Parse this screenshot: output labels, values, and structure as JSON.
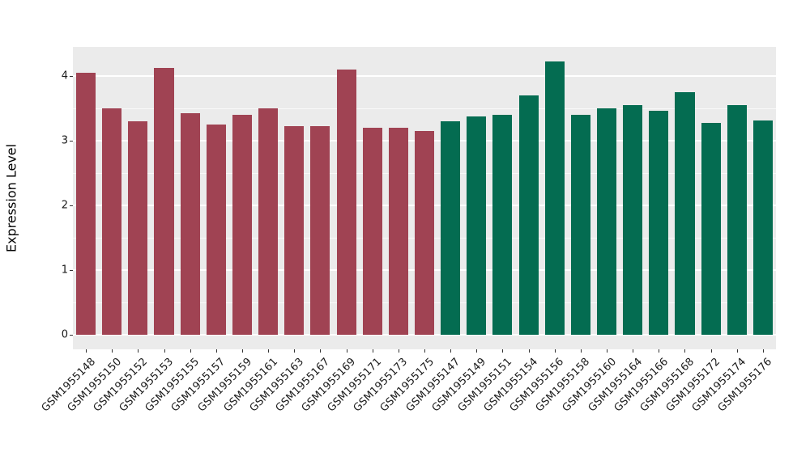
{
  "chart_data": {
    "type": "bar",
    "title": "",
    "xlabel": "",
    "ylabel": "Expression Level",
    "ylim": [
      0,
      4.45
    ],
    "yticks": [
      0,
      1,
      2,
      3,
      4
    ],
    "grid": true,
    "legend": "none",
    "panel_bg": "#EBEBEB",
    "grid_color": "#FFFFFF",
    "group_colors": {
      "A": "#A04353",
      "B": "#046C51"
    },
    "bars": [
      {
        "label": "GSM1955148",
        "value": 4.05,
        "group": "A"
      },
      {
        "label": "GSM1955150",
        "value": 3.5,
        "group": "A"
      },
      {
        "label": "GSM1955152",
        "value": 3.3,
        "group": "A"
      },
      {
        "label": "GSM1955153",
        "value": 4.12,
        "group": "A"
      },
      {
        "label": "GSM1955155",
        "value": 3.42,
        "group": "A"
      },
      {
        "label": "GSM1955157",
        "value": 3.25,
        "group": "A"
      },
      {
        "label": "GSM1955159",
        "value": 3.4,
        "group": "A"
      },
      {
        "label": "GSM1955161",
        "value": 3.5,
        "group": "A"
      },
      {
        "label": "GSM1955163",
        "value": 3.23,
        "group": "A"
      },
      {
        "label": "GSM1955167",
        "value": 3.23,
        "group": "A"
      },
      {
        "label": "GSM1955169",
        "value": 4.1,
        "group": "A"
      },
      {
        "label": "GSM1955171",
        "value": 3.2,
        "group": "A"
      },
      {
        "label": "GSM1955173",
        "value": 3.2,
        "group": "A"
      },
      {
        "label": "GSM1955175",
        "value": 3.15,
        "group": "A"
      },
      {
        "label": "GSM1955147",
        "value": 3.3,
        "group": "B"
      },
      {
        "label": "GSM1955149",
        "value": 3.37,
        "group": "B"
      },
      {
        "label": "GSM1955151",
        "value": 3.4,
        "group": "B"
      },
      {
        "label": "GSM1955154",
        "value": 3.7,
        "group": "B"
      },
      {
        "label": "GSM1955156",
        "value": 4.22,
        "group": "B"
      },
      {
        "label": "GSM1955158",
        "value": 3.4,
        "group": "B"
      },
      {
        "label": "GSM1955160",
        "value": 3.5,
        "group": "B"
      },
      {
        "label": "GSM1955164",
        "value": 3.55,
        "group": "B"
      },
      {
        "label": "GSM1955166",
        "value": 3.46,
        "group": "B"
      },
      {
        "label": "GSM1955168",
        "value": 3.75,
        "group": "B"
      },
      {
        "label": "GSM1955172",
        "value": 3.27,
        "group": "B"
      },
      {
        "label": "GSM1955174",
        "value": 3.55,
        "group": "B"
      },
      {
        "label": "GSM1955176",
        "value": 3.31,
        "group": "B"
      }
    ]
  }
}
